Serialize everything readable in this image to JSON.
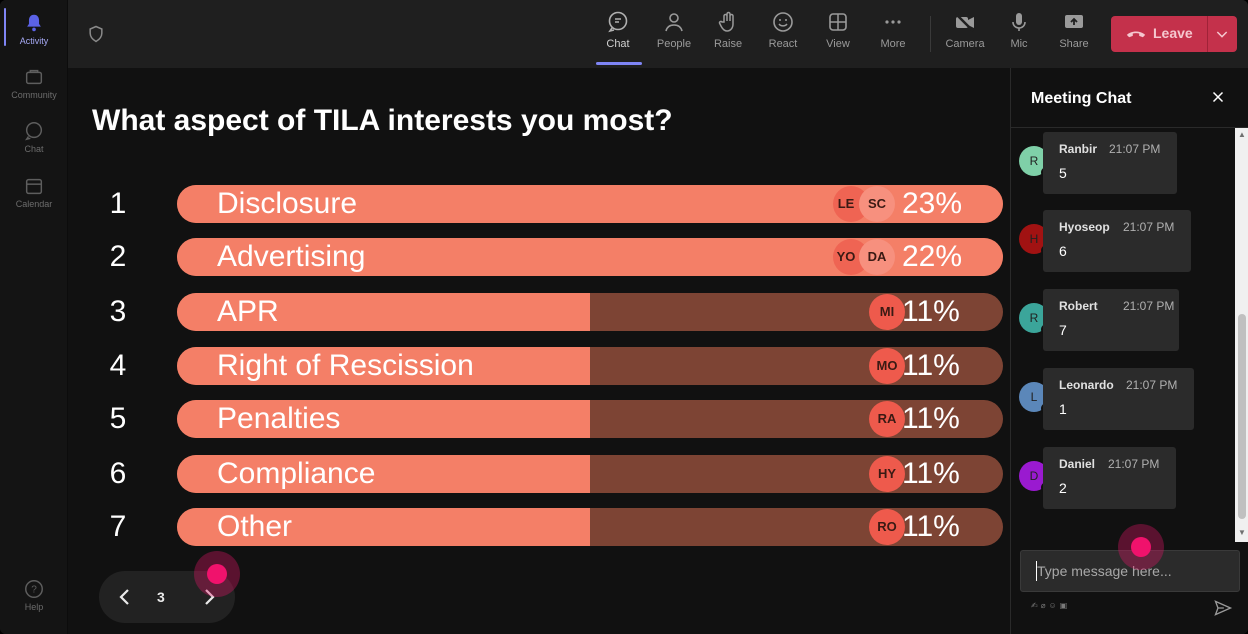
{
  "rail": {
    "items": [
      {
        "label": "Activity",
        "icon": "bell-icon"
      },
      {
        "label": "Community",
        "icon": "community-icon"
      },
      {
        "label": "Chat",
        "icon": "chat-icon"
      },
      {
        "label": "Calendar",
        "icon": "calendar-icon"
      },
      {
        "label": "Help",
        "icon": "help-icon"
      }
    ]
  },
  "toolbar": {
    "buttons": [
      {
        "label": "Chat",
        "icon": "chat-icon"
      },
      {
        "label": "People",
        "icon": "people-icon"
      },
      {
        "label": "Raise",
        "icon": "hand-icon"
      },
      {
        "label": "React",
        "icon": "smiley-icon"
      },
      {
        "label": "View",
        "icon": "grid-icon"
      },
      {
        "label": "More",
        "icon": "more-icon"
      },
      {
        "label": "Camera",
        "icon": "camera-off-icon"
      },
      {
        "label": "Mic",
        "icon": "mic-icon"
      },
      {
        "label": "Share",
        "icon": "share-icon"
      }
    ],
    "leave_label": "Leave"
  },
  "poll": {
    "question": "What aspect of TILA interests you most?",
    "options": [
      {
        "num": "1",
        "label": "Disclosure",
        "percent": 23,
        "pct_text": "23%",
        "avatars": [
          "LE",
          "SC"
        ]
      },
      {
        "num": "2",
        "label": "Advertising",
        "percent": 22,
        "pct_text": "22%",
        "avatars": [
          "YO",
          "DA"
        ]
      },
      {
        "num": "3",
        "label": "APR",
        "percent": 11,
        "pct_text": "11%",
        "avatars": [
          "MI"
        ]
      },
      {
        "num": "4",
        "label": "Right of Rescission",
        "percent": 11,
        "pct_text": "11%",
        "avatars": [
          "MO"
        ]
      },
      {
        "num": "5",
        "label": "Penalties",
        "percent": 11,
        "pct_text": "11%",
        "avatars": [
          "RA"
        ]
      },
      {
        "num": "6",
        "label": "Compliance",
        "percent": 11,
        "pct_text": "11%",
        "avatars": [
          "HY"
        ]
      },
      {
        "num": "7",
        "label": "Other",
        "percent": 11,
        "pct_text": "11%",
        "avatars": [
          "RO"
        ]
      }
    ],
    "page": "3"
  },
  "chat": {
    "title": "Meeting Chat",
    "messages": [
      {
        "initial": "R",
        "name": "Ranbir",
        "time": "21:07 PM",
        "text": "5",
        "color": "#7fd0a8"
      },
      {
        "initial": "H",
        "name": "Hyoseop",
        "time": "21:07 PM",
        "text": "6",
        "color": "#a11212"
      },
      {
        "initial": "R",
        "name": "Robert",
        "time": "21:07 PM",
        "text": "7",
        "color": "#3ba59a"
      },
      {
        "initial": "L",
        "name": "Leonardo",
        "time": "21:07 PM",
        "text": "1",
        "color": "#5b87b9"
      },
      {
        "initial": "D",
        "name": "Daniel",
        "time": "21:07 PM",
        "text": "2",
        "color": "#9a1ad0"
      }
    ],
    "input_placeholder": "Type message here..."
  },
  "colors": {
    "bar_fill": "#f47f67",
    "bar_track": "#7d4434",
    "leave": "#c4314b",
    "accent": "#7f85f5"
  }
}
